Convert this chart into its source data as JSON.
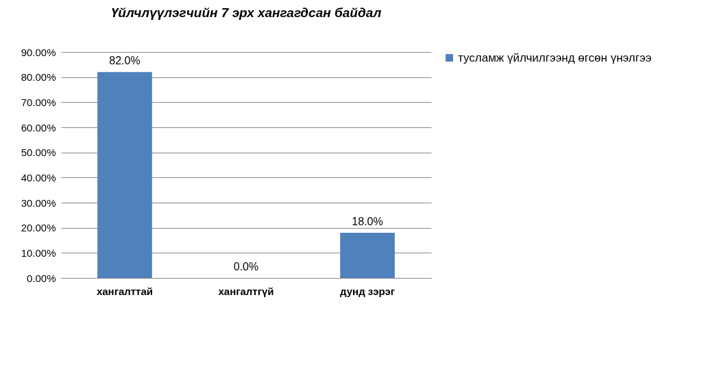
{
  "chart_data": {
    "type": "bar",
    "title": "Үйлчлүүлэгчийн  7 эрх хангагдсан  байдал",
    "categories": [
      "хангалттай",
      "хангалтгүй",
      "дунд зэрэг"
    ],
    "series": [
      {
        "name": "тусламж үйлчилгээнд өгсөн үнэлгээ",
        "color": "#4f81bd",
        "values": [
          82,
          0,
          18
        ],
        "value_labels": [
          "82.0%",
          "0.0%",
          "18.0%"
        ]
      }
    ],
    "ylim": [
      0,
      90
    ],
    "yticks": [
      {
        "value": 0,
        "label": "0.00%"
      },
      {
        "value": 10,
        "label": "10.00%"
      },
      {
        "value": 20,
        "label": "20.00%"
      },
      {
        "value": 30,
        "label": "30.00%"
      },
      {
        "value": 40,
        "label": "40.00%"
      },
      {
        "value": 50,
        "label": "50.00%"
      },
      {
        "value": 60,
        "label": "60.00%"
      },
      {
        "value": 70,
        "label": "70.00%"
      },
      {
        "value": 80,
        "label": "80.00%"
      },
      {
        "value": 90,
        "label": "90.00%"
      }
    ],
    "grid": "y",
    "legend": "right"
  }
}
